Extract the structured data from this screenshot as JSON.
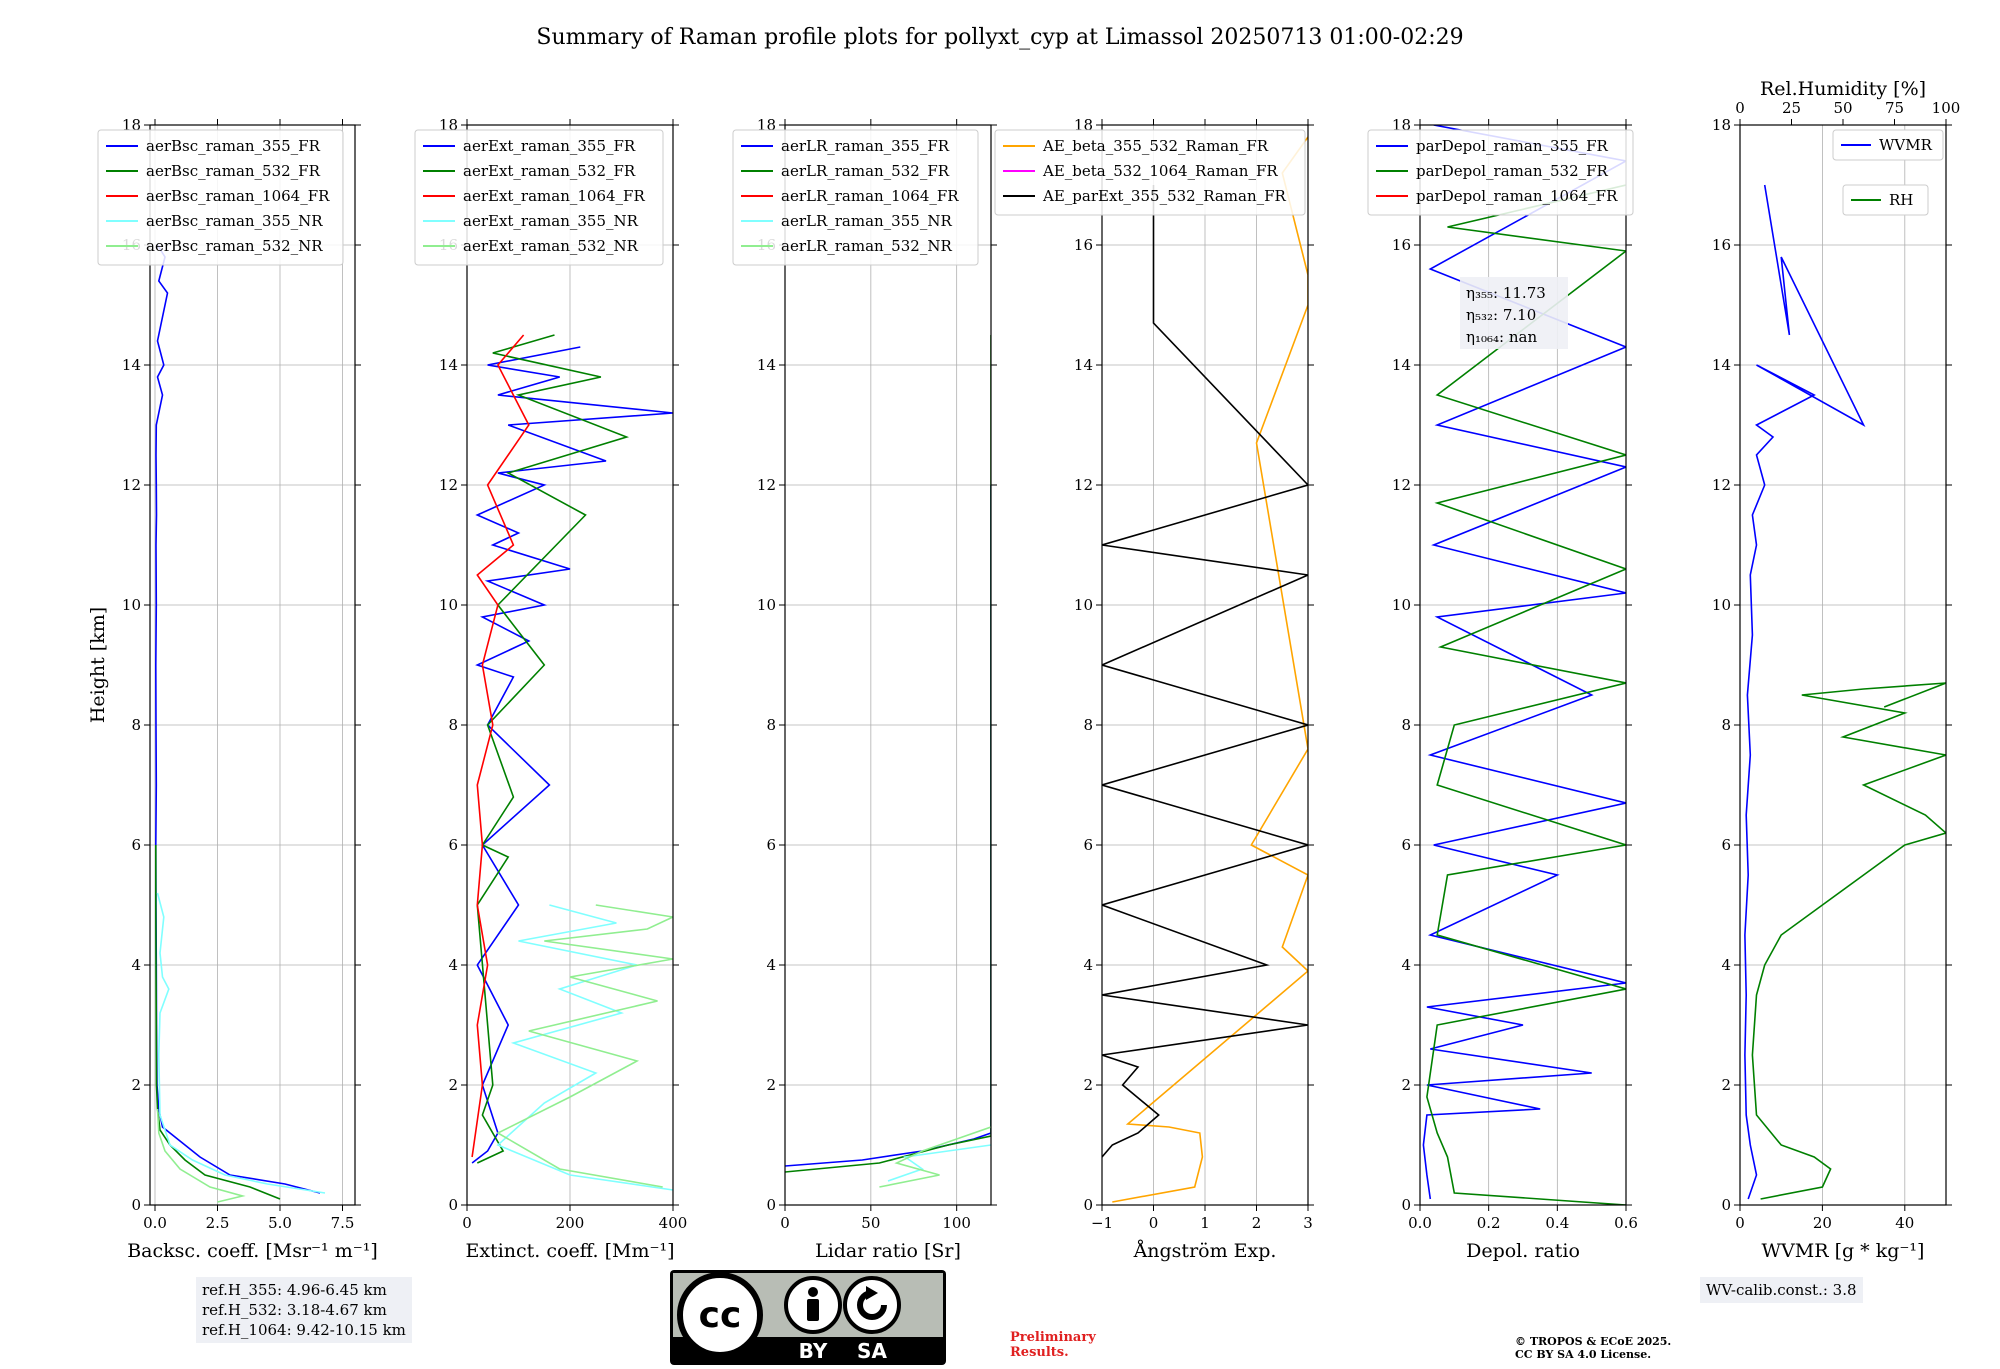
{
  "title": "Summary of Raman profile plots for pollyxt_cyp at Limassol 20250713 01:00-02:29",
  "ylabel": "Height [km]",
  "yticks": [
    "0",
    "2",
    "4",
    "6",
    "8",
    "10",
    "12",
    "14",
    "16",
    "18"
  ],
  "chart_data": [
    {
      "type": "line",
      "id": "backscatter",
      "xlabel": "Backsc. coeff. [Msr⁻¹ m⁻¹]",
      "xlim": [
        -0.2,
        8.0
      ],
      "xticks": [
        0,
        2.5,
        5.0,
        7.5
      ],
      "xtick_labels": [
        "0.0",
        "2.5",
        "5.0",
        "7.5"
      ],
      "ylim": [
        0,
        18
      ],
      "legend": "top-left",
      "series": [
        {
          "name": "aerBsc_raman_355_FR",
          "color": "#0000ff",
          "x": [
            6.6,
            5.2,
            3.0,
            1.8,
            0.9,
            0.3,
            0.15,
            0.08,
            0.06,
            0.05,
            0.04,
            0.03,
            0.05,
            0.04,
            0.03,
            0.05,
            0.04,
            0.06,
            0.05,
            0.04,
            0.05,
            0.3,
            0.1,
            0.35,
            0.1,
            0.5,
            0.15,
            0.4,
            0.1
          ],
          "y": [
            0.2,
            0.35,
            0.5,
            0.8,
            1.1,
            1.3,
            1.6,
            2,
            3,
            4,
            5,
            6,
            7,
            8,
            9,
            10,
            11,
            11.5,
            12,
            12.5,
            13,
            13.5,
            13.8,
            14,
            14.4,
            15.2,
            15.4,
            15.8,
            16
          ]
        },
        {
          "name": "aerBsc_raman_532_FR",
          "color": "#008000",
          "x": [
            5.0,
            3.8,
            2.0,
            1.2,
            0.6,
            0.2,
            0.1,
            0.06,
            0.05,
            0.04,
            0.03,
            0.03
          ],
          "y": [
            0.1,
            0.3,
            0.5,
            0.75,
            1.0,
            1.25,
            1.6,
            2,
            3,
            4,
            5,
            6
          ]
        },
        {
          "name": "aerBsc_raman_1064_FR",
          "color": "#ff0000",
          "x": [],
          "y": []
        },
        {
          "name": "aerBsc_raman_355_NR",
          "color": "#80ffff",
          "x": [
            6.8,
            4.5,
            2.8,
            1.5,
            0.6,
            0.2,
            0.15,
            0.2,
            0.55,
            0.3,
            0.2,
            0.35,
            0.1
          ],
          "y": [
            0.2,
            0.35,
            0.5,
            0.75,
            1.0,
            1.5,
            2.5,
            3.2,
            3.6,
            3.8,
            4.2,
            4.8,
            5.2
          ]
        },
        {
          "name": "aerBsc_raman_532_NR",
          "color": "#90ee90",
          "x": [
            2.5,
            3.5,
            2.2,
            1.0,
            0.4,
            0.15,
            0.1
          ],
          "y": [
            0.05,
            0.15,
            0.3,
            0.6,
            0.9,
            1.2,
            1.6
          ]
        }
      ]
    },
    {
      "type": "line",
      "id": "extinction",
      "xlabel": "Extinct. coeff. [Mm⁻¹]",
      "xlim": [
        0,
        400
      ],
      "xticks": [
        0,
        200,
        400
      ],
      "xtick_labels": [
        "0",
        "200",
        "400"
      ],
      "ylim": [
        0,
        18
      ],
      "legend": "top-left",
      "series": [
        {
          "name": "aerExt_raman_355_FR",
          "color": "#0000ff",
          "x": [
            10,
            40,
            60,
            30,
            80,
            20,
            100,
            30,
            160,
            40,
            90,
            20,
            120,
            30,
            150,
            40,
            200,
            50,
            100,
            20,
            150,
            60,
            270,
            80,
            400,
            60,
            180,
            40,
            220
          ],
          "y": [
            0.7,
            0.9,
            1.2,
            2,
            3,
            4,
            5,
            6,
            7,
            8,
            8.8,
            9,
            9.4,
            9.8,
            10,
            10.4,
            10.6,
            11,
            11.2,
            11.5,
            12,
            12.2,
            12.4,
            13,
            13.2,
            13.5,
            13.8,
            14,
            14.3
          ]
        },
        {
          "name": "aerExt_raman_532_FR",
          "color": "#008000",
          "x": [
            20,
            70,
            30,
            50,
            20,
            80,
            30,
            90,
            40,
            150,
            60,
            230,
            80,
            310,
            100,
            260,
            50,
            170
          ],
          "y": [
            0.7,
            0.9,
            1.5,
            2,
            5,
            5.8,
            6,
            6.8,
            8,
            9,
            10,
            11.5,
            12.2,
            12.8,
            13.5,
            13.8,
            14.2,
            14.5
          ]
        },
        {
          "name": "aerExt_raman_1064_FR",
          "color": "#ff0000",
          "x": [
            10,
            30,
            20,
            40,
            20,
            30,
            20,
            50,
            30,
            60,
            20,
            90,
            40,
            120,
            60,
            110
          ],
          "y": [
            0.8,
            2,
            3,
            4,
            5,
            6,
            7,
            8,
            9,
            10,
            10.5,
            11,
            12,
            13,
            14,
            14.5
          ]
        },
        {
          "name": "aerExt_raman_355_NR",
          "color": "#80ffff",
          "x": [
            400,
            200,
            60,
            150,
            250,
            90,
            300,
            180,
            330,
            100,
            290,
            160
          ],
          "y": [
            0.25,
            0.5,
            1,
            1.7,
            2.2,
            2.7,
            3.2,
            3.6,
            4.0,
            4.4,
            4.7,
            5.0
          ]
        },
        {
          "name": "aerExt_raman_532_NR",
          "color": "#90ee90",
          "x": [
            380,
            180,
            60,
            200,
            330,
            120,
            370,
            200,
            400,
            150,
            350,
            400,
            250
          ],
          "y": [
            0.3,
            0.6,
            1.2,
            1.8,
            2.4,
            2.9,
            3.4,
            3.8,
            4.1,
            4.4,
            4.6,
            4.8,
            5.0
          ]
        }
      ]
    },
    {
      "type": "line",
      "id": "lidar_ratio",
      "xlabel": "Lidar ratio [Sr]",
      "xlim": [
        0,
        120
      ],
      "xticks": [
        0,
        50,
        100
      ],
      "xtick_labels": [
        "0",
        "50",
        "100"
      ],
      "ylim": [
        0,
        18
      ],
      "legend": "top-left",
      "series": [
        {
          "name": "aerLR_raman_355_FR",
          "color": "#0000ff",
          "x": [
            0,
            45,
            80,
            110,
            120,
            120
          ],
          "y": [
            0.65,
            0.75,
            0.9,
            1.1,
            1.2,
            12
          ]
        },
        {
          "name": "aerLR_raman_532_FR",
          "color": "#008000",
          "x": [
            0,
            55,
            75,
            95,
            120,
            120
          ],
          "y": [
            0.55,
            0.7,
            0.85,
            1.0,
            1.15,
            14.5
          ]
        },
        {
          "name": "aerLR_raman_1064_FR",
          "color": "#ff0000",
          "x": [],
          "y": []
        },
        {
          "name": "aerLR_raman_355_NR",
          "color": "#80ffff",
          "x": [
            60,
            80,
            70,
            120
          ],
          "y": [
            0.4,
            0.6,
            0.8,
            1.0
          ]
        },
        {
          "name": "aerLR_raman_532_NR",
          "color": "#90ee90",
          "x": [
            55,
            90,
            65,
            80,
            120
          ],
          "y": [
            0.3,
            0.5,
            0.7,
            0.9,
            1.3
          ]
        }
      ]
    },
    {
      "type": "line",
      "id": "angstrom",
      "xlabel": "Ångström Exp.",
      "xlim": [
        -1,
        3
      ],
      "xticks": [
        -1,
        0,
        1,
        2,
        3
      ],
      "xtick_labels": [
        "−1",
        "0",
        "1",
        "2",
        "3"
      ],
      "ylim": [
        0,
        18
      ],
      "legend": "top-center",
      "series": [
        {
          "name": "AE_beta_355_532_Raman_FR",
          "color": "#ffa500",
          "x": [
            -0.8,
            0.8,
            0.95,
            0.9,
            0.3,
            -0.5,
            3,
            2.5,
            3,
            1.9,
            3,
            2.0,
            3,
            3,
            2.5,
            3
          ],
          "y": [
            0.05,
            0.3,
            0.8,
            1.2,
            1.3,
            1.35,
            3.9,
            4.3,
            5.5,
            6.0,
            7.6,
            12.7,
            15.0,
            15.5,
            17.2,
            17.8
          ]
        },
        {
          "name": "AE_beta_532_1064_Raman_FR",
          "color": "#ff00ff",
          "x": [],
          "y": []
        },
        {
          "name": "AE_parExt_355_532_Raman_FR",
          "color": "#000000",
          "x": [
            -1,
            -0.8,
            -0.3,
            0.1,
            -0.6,
            -0.3,
            -1,
            3,
            -1,
            2.2,
            -1,
            3,
            -1,
            3,
            -1,
            3,
            -1,
            3,
            0,
            0
          ],
          "y": [
            0.8,
            1.0,
            1.2,
            1.5,
            2.0,
            2.3,
            2.5,
            3.0,
            3.5,
            4.0,
            5.0,
            6.0,
            7.0,
            8.0,
            9.0,
            10.5,
            11,
            12,
            14.7,
            17
          ]
        }
      ]
    },
    {
      "type": "line",
      "id": "depol",
      "xlabel": "Depol. ratio",
      "xlim": [
        0,
        0.6
      ],
      "xticks": [
        0,
        0.2,
        0.4,
        0.6
      ],
      "xtick_labels": [
        "0.0",
        "0.2",
        "0.4",
        "0.6"
      ],
      "ylim": [
        0,
        18
      ],
      "legend": "top-left",
      "series": [
        {
          "name": "parDepol_raman_355_FR",
          "color": "#0000ff",
          "x": [
            0.03,
            0.02,
            0.01,
            0.02,
            0.35,
            0.02,
            0.5,
            0.03,
            0.3,
            0.02,
            0.6,
            0.03,
            0.4,
            0.04,
            0.6,
            0.03,
            0.5,
            0.05,
            0.6,
            0.04,
            0.6,
            0.05,
            0.6,
            0.03,
            0.6,
            0.04
          ],
          "y": [
            0.1,
            0.5,
            1.0,
            1.5,
            1.6,
            2.0,
            2.2,
            2.6,
            3.0,
            3.3,
            3.7,
            4.5,
            5.5,
            6.0,
            6.7,
            7.5,
            8.5,
            9.8,
            10.2,
            11.0,
            12.3,
            13.0,
            14.3,
            15.6,
            17.4,
            18
          ]
        },
        {
          "name": "parDepol_raman_532_FR",
          "color": "#008000",
          "x": [
            0.6,
            0.1,
            0.08,
            0.05,
            0.02,
            0.05,
            0.6,
            0.05,
            0.08,
            0.6,
            0.05,
            0.1,
            0.6,
            0.06,
            0.6,
            0.05,
            0.6,
            0.05,
            0.6,
            0.08,
            0.6
          ],
          "y": [
            0,
            0.2,
            0.8,
            1.2,
            1.8,
            3,
            3.6,
            4.5,
            5.5,
            6.0,
            7.0,
            8.0,
            8.7,
            9.3,
            10.6,
            11.7,
            12.5,
            13.5,
            15.9,
            16.3,
            17
          ]
        },
        {
          "name": "parDepol_raman_1064_FR",
          "color": "#ff0000",
          "x": [],
          "y": []
        }
      ],
      "annotation": [
        "η₃₅₅: 11.73",
        "η₅₃₂: 7.10",
        "η₁₀₆₄: nan"
      ]
    },
    {
      "type": "line",
      "id": "wv",
      "xlabel": "WVMR [g * kg⁻¹]",
      "xlim": [
        0,
        50
      ],
      "xticks": [
        0,
        20,
        40
      ],
      "xtick_labels": [
        "0",
        "20",
        "40"
      ],
      "x2label": "Rel.Humidity [%]",
      "x2lim": [
        0,
        100
      ],
      "x2ticks": [
        0,
        25,
        50,
        75,
        100
      ],
      "x2tick_labels": [
        "0",
        "25",
        "50",
        "75",
        "100"
      ],
      "ylim": [
        0,
        18
      ],
      "series": [
        {
          "name": "WVMR",
          "color": "#0000ff",
          "x": [
            2,
            4,
            2.5,
            1.5,
            1.2,
            1.5,
            1.2,
            2,
            1.5,
            2.5,
            1.8,
            3,
            2.5,
            4,
            3,
            6,
            4,
            8,
            4,
            18,
            4,
            30,
            10,
            12,
            6
          ],
          "y": [
            0.1,
            0.5,
            1.0,
            1.5,
            2.5,
            3.5,
            4.5,
            5.5,
            6.5,
            7.5,
            8.5,
            9.5,
            10.5,
            11.0,
            11.5,
            12.0,
            12.5,
            12.8,
            13.0,
            13.5,
            14.0,
            13.0,
            15.8,
            14.5,
            17.0
          ]
        },
        {
          "name": "RH",
          "color": "#008000",
          "x": [
            5,
            20,
            22,
            18,
            10,
            4,
            3,
            4,
            6,
            10,
            20,
            30,
            40,
            50,
            45,
            30,
            50,
            25,
            40,
            15,
            30,
            50,
            35
          ],
          "y": [
            0.1,
            0.3,
            0.6,
            0.8,
            1.0,
            1.5,
            2.5,
            3.5,
            4.0,
            4.5,
            5.0,
            5.5,
            6.0,
            6.2,
            6.5,
            7.0,
            7.5,
            7.8,
            8.2,
            8.5,
            8.6,
            8.7,
            8.3
          ]
        }
      ]
    }
  ],
  "refbox": [
    "ref.H_355: 4.96-6.45 km",
    "ref.H_532: 3.18-4.67 km",
    "ref.H_1064: 9.42-10.15 km"
  ],
  "wvbox": "WV-calib.const.: 3.8",
  "cc_by": "BY",
  "cc_sa": "SA",
  "cc_logo": "cc",
  "prelim": [
    "Preliminary",
    "Results."
  ],
  "copyright": [
    "© TROPOS & ECoE 2025.",
    "CC BY SA 4.0 License."
  ]
}
